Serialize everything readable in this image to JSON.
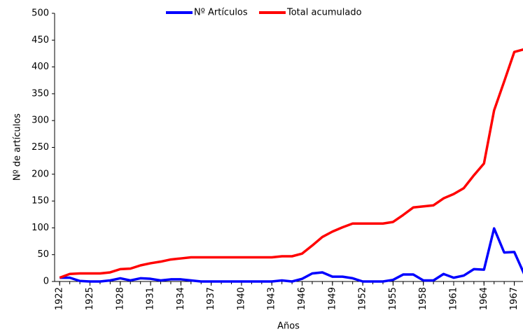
{
  "chart_data": {
    "type": "line",
    "x": [
      1922,
      1923,
      1924,
      1925,
      1926,
      1927,
      1928,
      1929,
      1930,
      1931,
      1932,
      1933,
      1934,
      1935,
      1936,
      1937,
      1938,
      1939,
      1940,
      1941,
      1942,
      1943,
      1944,
      1945,
      1946,
      1947,
      1948,
      1949,
      1950,
      1951,
      1952,
      1953,
      1954,
      1955,
      1956,
      1957,
      1958,
      1959,
      1960,
      1961,
      1962,
      1963,
      1964,
      1965,
      1966,
      1967,
      1968
    ],
    "series": [
      {
        "name": "Nº Artículos",
        "color": "#0000ff",
        "values": [
          7,
          7,
          1,
          0,
          0,
          2,
          6,
          2,
          6,
          5,
          2,
          4,
          4,
          2,
          0,
          0,
          0,
          0,
          0,
          0,
          0,
          0,
          2,
          0,
          5,
          15,
          17,
          9,
          9,
          6,
          0,
          0,
          0,
          3,
          13,
          13,
          2,
          2,
          14,
          7,
          11,
          23,
          22,
          99,
          54,
          55,
          13
        ]
      },
      {
        "name": "Total acumulado",
        "color": "#ff0000",
        "values": [
          7,
          14,
          15,
          15,
          15,
          17,
          23,
          24,
          30,
          34,
          37,
          41,
          43,
          45,
          45,
          45,
          45,
          45,
          45,
          45,
          45,
          45,
          47,
          47,
          52,
          67,
          83,
          93,
          101,
          108,
          108,
          108,
          108,
          111,
          124,
          138,
          140,
          142,
          155,
          163,
          174,
          198,
          220,
          319,
          373,
          428,
          433
        ]
      }
    ],
    "xlabel": "Años",
    "ylabel": "Nº de artículos",
    "xlim": [
      1921.5,
      1968
    ],
    "xticks": [
      1922,
      1925,
      1928,
      1931,
      1934,
      1937,
      1940,
      1943,
      1946,
      1949,
      1952,
      1955,
      1958,
      1961,
      1964,
      1967
    ],
    "ylim": [
      0,
      500
    ],
    "yticks": [
      0,
      50,
      100,
      150,
      200,
      250,
      300,
      350,
      400,
      450,
      500
    ],
    "grid": false,
    "legend": "top"
  }
}
